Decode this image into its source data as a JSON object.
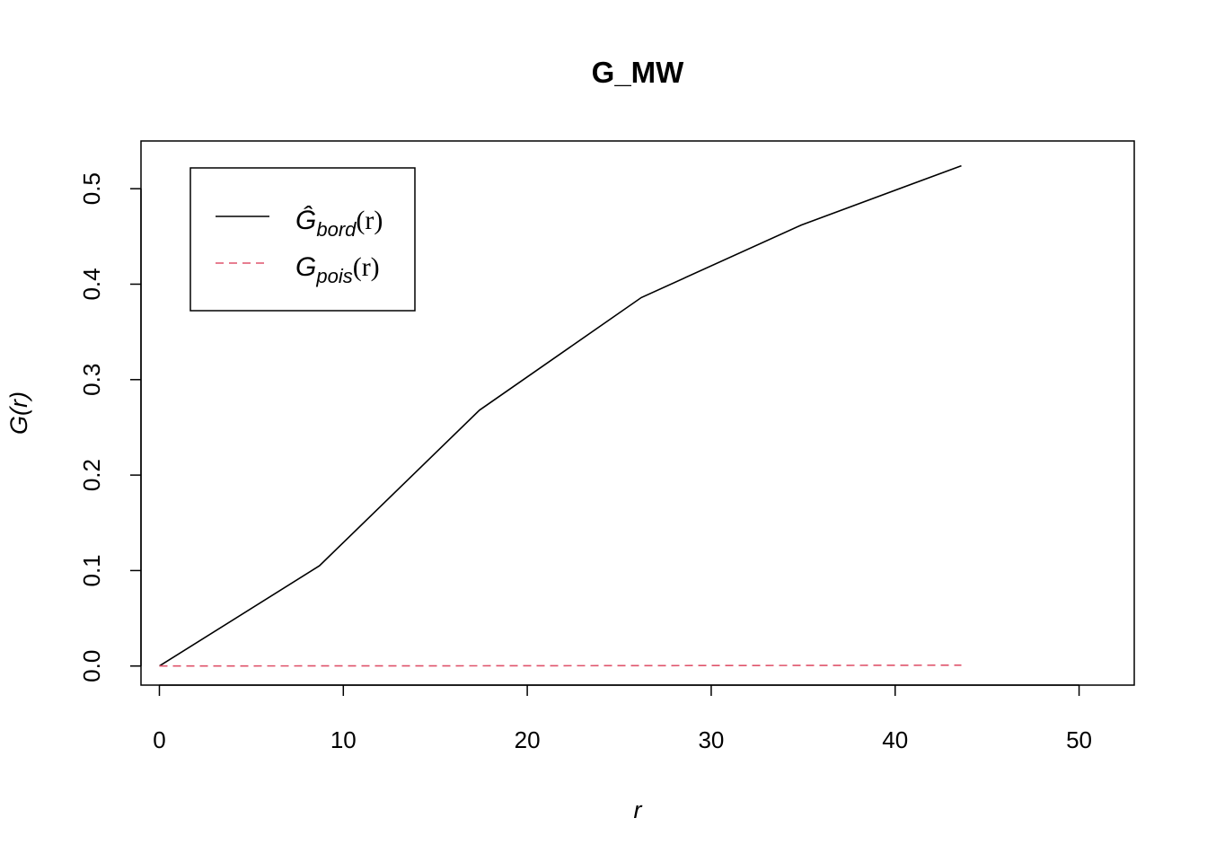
{
  "chart_data": {
    "type": "line",
    "title": "G_MW",
    "xlabel": "r",
    "ylabel": "G(r)",
    "xlim": [
      -1,
      53
    ],
    "ylim": [
      -0.02,
      0.55
    ],
    "xticks": [
      0,
      10,
      20,
      30,
      40,
      50
    ],
    "yticks": [
      0.0,
      0.1,
      0.2,
      0.3,
      0.4,
      0.5
    ],
    "xtick_labels": [
      "0",
      "10",
      "20",
      "30",
      "40",
      "50"
    ],
    "ytick_labels": [
      "0.0",
      "0.1",
      "0.2",
      "0.3",
      "0.4",
      "0.5"
    ],
    "grid": false,
    "legend_position": "top-left",
    "series": [
      {
        "name": "Ĝbord(r)",
        "legend_main": "Ĝ",
        "legend_sub": "bord",
        "legend_arg": "(r)",
        "color": "#000000",
        "dash": "solid",
        "x": [
          0,
          8.7,
          17.4,
          26.2,
          34.9,
          43.6
        ],
        "y": [
          0.0,
          0.105,
          0.268,
          0.386,
          0.462,
          0.524
        ]
      },
      {
        "name": "Gpois(r)",
        "legend_main": "G",
        "legend_sub": "pois",
        "legend_arg": "(r)",
        "color": "#DF536B",
        "dash": "dashed",
        "x": [
          0,
          8.7,
          17.4,
          26.2,
          34.9,
          43.6
        ],
        "y": [
          0.0,
          0.0001,
          0.0002,
          0.0004,
          0.0006,
          0.0009
        ]
      }
    ]
  }
}
